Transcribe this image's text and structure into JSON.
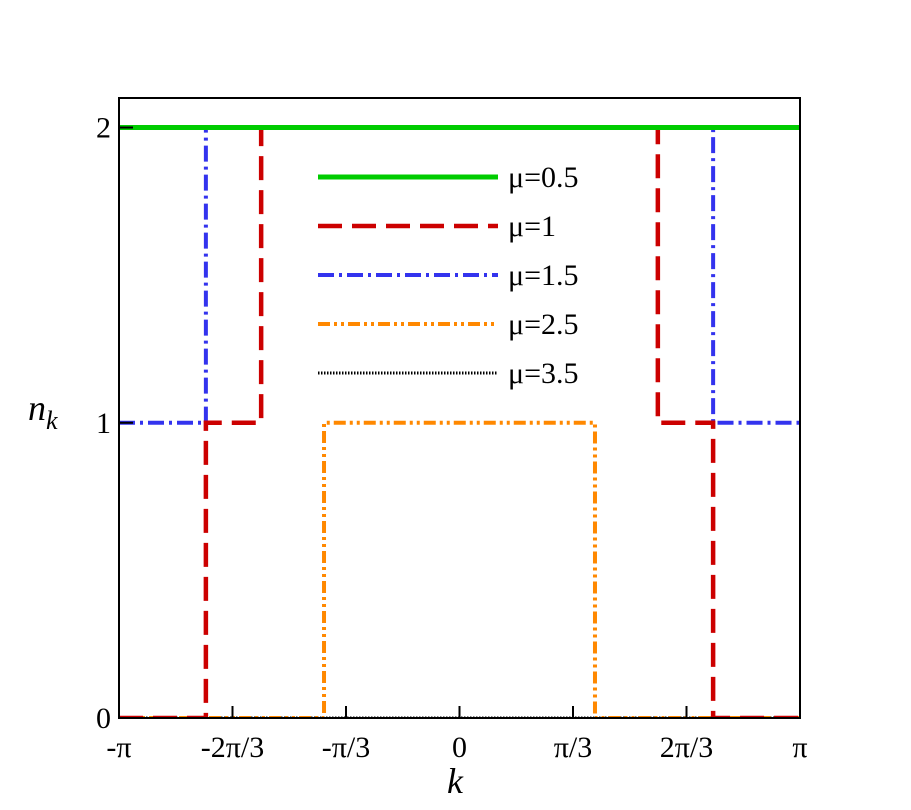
{
  "chart_data": {
    "type": "line",
    "xlabel": "k",
    "ylabel": {
      "main": "n",
      "sub": "k"
    },
    "xlim": [
      -3.14159,
      3.14159
    ],
    "ylim": [
      0,
      2.1
    ],
    "xticks": [
      {
        "value": -3.14159,
        "label": "-π"
      },
      {
        "value": -2.0944,
        "label": "-2π/3"
      },
      {
        "value": -1.0472,
        "label": "-π/3"
      },
      0,
      {
        "value": 1.0472,
        "label": "π/3"
      },
      {
        "value": 2.0944,
        "label": "2π/3"
      },
      {
        "value": 3.14159,
        "label": "π"
      }
    ],
    "yticks": [
      0,
      1,
      2
    ],
    "series": [
      {
        "name": "μ=0.5",
        "color": "#00cc00",
        "dash": "solid",
        "x": [
          -3.14159,
          3.14159
        ],
        "values": [
          2,
          2
        ]
      },
      {
        "name": "μ=1",
        "color": "#cc0000",
        "dash": "dashed",
        "x": [
          -3.14159,
          -2.34,
          -2.34,
          -1.83,
          -1.83,
          1.83,
          1.83,
          2.34,
          2.34,
          3.14159
        ],
        "values": [
          0,
          0,
          1,
          1,
          2,
          2,
          1,
          1,
          0,
          0
        ]
      },
      {
        "name": "μ=1.5",
        "color": "#3333ee",
        "dash": "dashdot",
        "x": [
          -3.14159,
          -2.34,
          -2.34,
          2.34,
          2.34,
          3.14159
        ],
        "values": [
          1,
          1,
          2,
          2,
          1,
          1
        ]
      },
      {
        "name": "μ=2.5",
        "color": "#ff8800",
        "dash": "dashdotdot",
        "x": [
          -3.14159,
          -1.25,
          -1.25,
          1.25,
          1.25,
          3.14159
        ],
        "values": [
          0,
          0,
          1,
          1,
          0,
          0
        ]
      },
      {
        "name": "μ=3.5",
        "color": "#000000",
        "dash": "dotted",
        "x": [
          -3.14159,
          3.14159
        ],
        "values": [
          0,
          0
        ]
      }
    ]
  }
}
